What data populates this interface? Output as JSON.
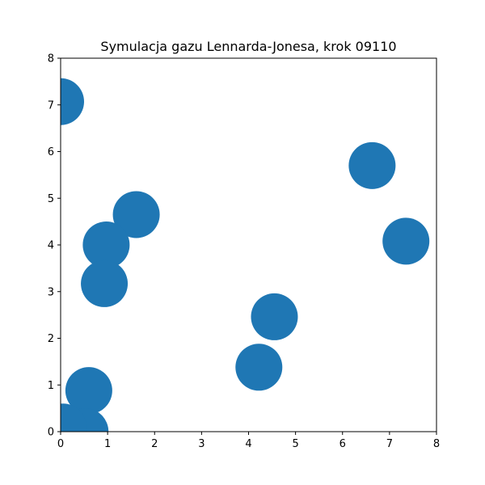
{
  "chart_data": {
    "type": "scatter",
    "title": "Symulacja gazu Lennarda-Jonesa, krok 09110",
    "xlabel": "",
    "ylabel": "",
    "xlim": [
      0,
      8
    ],
    "ylim": [
      0,
      8
    ],
    "x_ticks": [
      "0",
      "1",
      "2",
      "3",
      "4",
      "5",
      "6",
      "7",
      "8"
    ],
    "y_ticks": [
      "0",
      "1",
      "2",
      "3",
      "4",
      "5",
      "6",
      "7",
      "8"
    ],
    "grid": false,
    "series": [
      {
        "color": "#1f77b4",
        "points": [
          {
            "x": 0.0,
            "y": 7.07
          },
          {
            "x": 6.63,
            "y": 5.7
          },
          {
            "x": 1.61,
            "y": 4.65
          },
          {
            "x": 0.97,
            "y": 4.0
          },
          {
            "x": 7.35,
            "y": 4.08
          },
          {
            "x": 0.93,
            "y": 3.17
          },
          {
            "x": 4.55,
            "y": 2.46
          },
          {
            "x": 4.22,
            "y": 1.38
          },
          {
            "x": 0.6,
            "y": 0.88
          },
          {
            "x": 0.52,
            "y": 0.0
          },
          {
            "x": 0.05,
            "y": 0.1
          }
        ]
      }
    ]
  }
}
